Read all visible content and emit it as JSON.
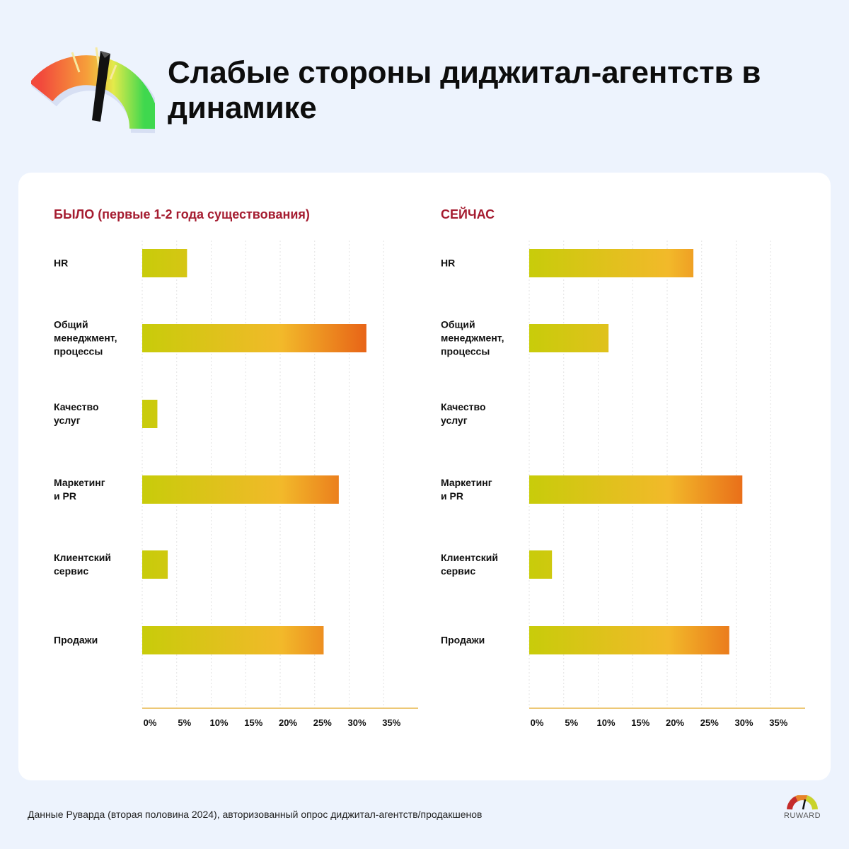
{
  "header": {
    "title": "Слабые стороны диджитал-агентств в динамике"
  },
  "footer": {
    "note": "Данные Руварда (вторая половина 2024), авторизованный опрос диджитал-агентств/продакшенов",
    "brand": "RUWARD"
  },
  "colors": {
    "accent": "#a51c30",
    "bar_start": "#c8cc0a",
    "bar_mid": "#f2b92a",
    "bar_end": "#e86417",
    "axis": "#e7b548",
    "grid": "#e2e2e2"
  },
  "chart_data": [
    {
      "type": "bar",
      "orientation": "horizontal",
      "title": "БЫЛО (первые 1-2 года существования)",
      "categories": [
        "HR",
        "Общий менеджмент, процессы",
        "Качество услуг",
        "Маркетинг и PR",
        "Клиентский сервис",
        "Продажи"
      ],
      "category_lines": [
        [
          "HR"
        ],
        [
          "Общий",
          "менеджмент,",
          "процессы"
        ],
        [
          "Качество",
          "услуг"
        ],
        [
          "Маркетинг",
          "и PR"
        ],
        [
          "Клиентский",
          "сервис"
        ],
        [
          "Продажи"
        ]
      ],
      "values": [
        6.5,
        32.5,
        2.2,
        28.5,
        3.7,
        26.3
      ],
      "xlim": [
        0,
        40
      ],
      "ticks": [
        0,
        5,
        10,
        15,
        20,
        25,
        30,
        35
      ],
      "tick_labels": [
        "0%",
        "5%",
        "10%",
        "15%",
        "20%",
        "25%",
        "30%",
        "35%"
      ],
      "grid": true
    },
    {
      "type": "bar",
      "orientation": "horizontal",
      "title": "СЕЙЧАС",
      "categories": [
        "HR",
        "Общий менеджмент, процессы",
        "Качество услуг",
        "Маркетинг и PR",
        "Клиентский сервис",
        "Продажи"
      ],
      "category_lines": [
        [
          "HR"
        ],
        [
          "Общий",
          "менеджмент,",
          "процессы"
        ],
        [
          "Качество",
          "услуг"
        ],
        [
          "Маркетинг",
          "и PR"
        ],
        [
          "Клиентский",
          "сервис"
        ],
        [
          "Продажи"
        ]
      ],
      "values": [
        23.8,
        11.5,
        0,
        30.9,
        3.3,
        29.0
      ],
      "xlim": [
        0,
        40
      ],
      "ticks": [
        0,
        5,
        10,
        15,
        20,
        25,
        30,
        35
      ],
      "tick_labels": [
        "0%",
        "5%",
        "10%",
        "15%",
        "20%",
        "25%",
        "30%",
        "35%"
      ],
      "grid": true
    }
  ]
}
